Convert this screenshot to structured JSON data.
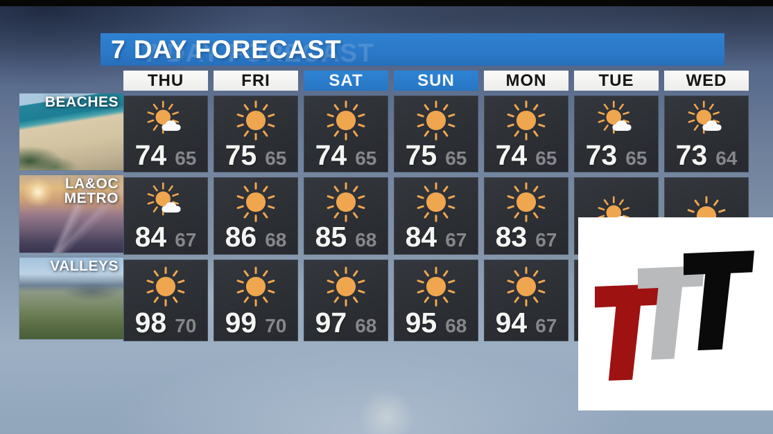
{
  "header": {
    "title": "7 DAY FORECAST",
    "ghost_title": "7 DAY FORECAST",
    "bar_color": "#2a77c6"
  },
  "days": [
    {
      "label": "THU",
      "highlighted": false
    },
    {
      "label": "FRI",
      "highlighted": false
    },
    {
      "label": "SAT",
      "highlighted": true
    },
    {
      "label": "SUN",
      "highlighted": true
    },
    {
      "label": "MON",
      "highlighted": false
    },
    {
      "label": "TUE",
      "highlighted": false
    },
    {
      "label": "WED",
      "highlighted": false
    }
  ],
  "regions": [
    {
      "name": "BEACHES",
      "label_lines": [
        "BEACHES"
      ],
      "photo": "beach-aerial-with-pier",
      "cells": [
        {
          "icon": "sun-cloud",
          "hi": "74",
          "lo": "65"
        },
        {
          "icon": "sun",
          "hi": "75",
          "lo": "65"
        },
        {
          "icon": "sun",
          "hi": "74",
          "lo": "65"
        },
        {
          "icon": "sun",
          "hi": "75",
          "lo": "65"
        },
        {
          "icon": "sun",
          "hi": "74",
          "lo": "65"
        },
        {
          "icon": "sun-cloud",
          "hi": "73",
          "lo": "65"
        },
        {
          "icon": "sun-cloud",
          "hi": "73",
          "lo": "64"
        }
      ]
    },
    {
      "name": "LA & OC METRO",
      "label_lines": [
        "LA&OC",
        "METRO"
      ],
      "photo": "freeway-interchange-sunset",
      "cells": [
        {
          "icon": "sun-cloud",
          "hi": "84",
          "lo": "67"
        },
        {
          "icon": "sun",
          "hi": "86",
          "lo": "68"
        },
        {
          "icon": "sun",
          "hi": "85",
          "lo": "68"
        },
        {
          "icon": "sun",
          "hi": "84",
          "lo": "67"
        },
        {
          "icon": "sun",
          "hi": "83",
          "lo": "67"
        },
        {
          "icon": "sun-cloud",
          "hi": "",
          "lo": ""
        },
        {
          "icon": "sun",
          "hi": "",
          "lo": ""
        }
      ]
    },
    {
      "name": "VALLEYS",
      "label_lines": [
        "VALLEYS"
      ],
      "photo": "valley-aerial-suburbs",
      "cells": [
        {
          "icon": "sun",
          "hi": "98",
          "lo": "70"
        },
        {
          "icon": "sun",
          "hi": "99",
          "lo": "70"
        },
        {
          "icon": "sun",
          "hi": "97",
          "lo": "68"
        },
        {
          "icon": "sun",
          "hi": "95",
          "lo": "68"
        },
        {
          "icon": "sun",
          "hi": "94",
          "lo": "67"
        },
        {
          "icon": null,
          "hi": "",
          "lo": ""
        },
        {
          "icon": null,
          "hi": "",
          "lo": ""
        }
      ]
    }
  ],
  "colors": {
    "title_bar_blue": "#2a77c6",
    "weekend_header_blue": "#2a7ccd",
    "cell_background": "#2c2f34",
    "sun_orange": "#efa64f",
    "high_temp": "#f4f4f3",
    "low_temp": "#85878b",
    "logo_red": "#9e1212",
    "logo_gray": "#b9babc",
    "logo_black": "#0a0a0a"
  },
  "logo": {
    "description": "three-overlapping-slanted-T-letters",
    "letters": [
      "T",
      "T",
      "T"
    ],
    "letter_colors": [
      "#9e1212",
      "#b9babc",
      "#0a0a0a"
    ]
  },
  "chart_data": {
    "type": "table",
    "title": "7 DAY FORECAST",
    "columns": [
      "THU",
      "FRI",
      "SAT",
      "SUN",
      "MON",
      "TUE",
      "WED"
    ],
    "rows": [
      {
        "region": "BEACHES",
        "highs": [
          74,
          75,
          74,
          75,
          74,
          73,
          73
        ],
        "lows": [
          65,
          65,
          65,
          65,
          65,
          65,
          64
        ],
        "conditions": [
          "mostly-sunny",
          "sunny",
          "sunny",
          "sunny",
          "sunny",
          "mostly-sunny",
          "mostly-sunny"
        ]
      },
      {
        "region": "LA & OC METRO",
        "highs": [
          84,
          86,
          85,
          84,
          83,
          null,
          null
        ],
        "lows": [
          67,
          68,
          68,
          67,
          67,
          null,
          null
        ],
        "conditions": [
          "mostly-sunny",
          "sunny",
          "sunny",
          "sunny",
          "sunny",
          "mostly-sunny",
          "sunny"
        ]
      },
      {
        "region": "VALLEYS",
        "highs": [
          98,
          99,
          97,
          95,
          94,
          null,
          null
        ],
        "lows": [
          70,
          70,
          68,
          68,
          67,
          null,
          null
        ],
        "conditions": [
          "sunny",
          "sunny",
          "sunny",
          "sunny",
          "sunny",
          null,
          null
        ]
      }
    ],
    "notes": "TUE/WED values for Metro and Valleys rows are obscured by the station logo overlay"
  }
}
